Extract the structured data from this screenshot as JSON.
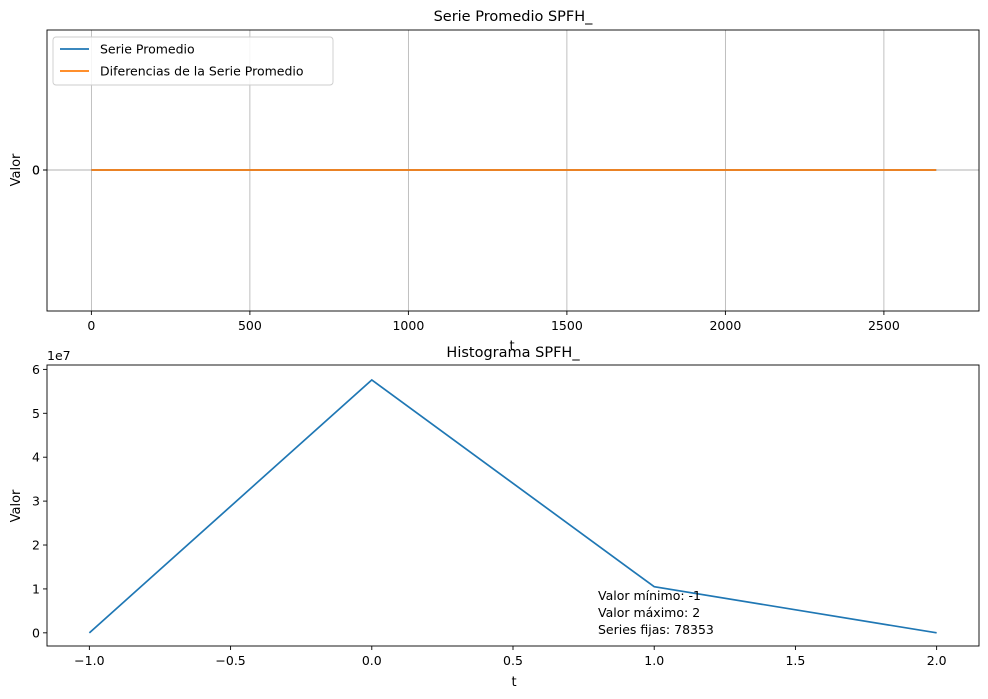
{
  "chart_data": [
    {
      "type": "line",
      "title": "Serie Promedio SPFH_",
      "xlabel": "t",
      "ylabel": "Valor",
      "grid": "x",
      "legend_position": "upper-left",
      "xlim": [
        -140,
        2800
      ],
      "xticks": [
        0,
        500,
        1000,
        1500,
        2000,
        2500
      ],
      "yticks": [
        "0",
        "0"
      ],
      "series": [
        {
          "name": "Serie Promedio",
          "color": "#1f77b4",
          "x": [
            0,
            2665
          ],
          "y": [
            0,
            0
          ]
        },
        {
          "name": "Diferencias de la Serie Promedio",
          "color": "#ff7f0e",
          "x": [
            0,
            2665
          ],
          "y": [
            0,
            0
          ]
        }
      ],
      "hline": 0
    },
    {
      "type": "line",
      "title": "Histograma SPFH_",
      "xlabel": "t",
      "ylabel": "Valor",
      "y_scale_label": "1e7",
      "xlim": [
        -1.15,
        2.15
      ],
      "ylim": [
        -0.3,
        6.1
      ],
      "xticks": [
        -1.0,
        -0.5,
        0.0,
        0.5,
        1.0,
        1.5,
        2.0
      ],
      "xtick_labels": [
        "−1.0",
        "−0.5",
        "0.0",
        "0.5",
        "1.0",
        "1.5",
        "2.0"
      ],
      "yticks": [
        0,
        1,
        2,
        3,
        4,
        5,
        6
      ],
      "series": [
        {
          "name": "Histograma",
          "color": "#1f77b4",
          "x": [
            -1,
            0,
            1,
            2
          ],
          "y": [
            0,
            5.76,
            1.05,
            0
          ]
        }
      ],
      "annotations": [
        "Valor mínimo: -1",
        "Valor máximo: 2",
        "Series fijas: 78353"
      ]
    }
  ]
}
